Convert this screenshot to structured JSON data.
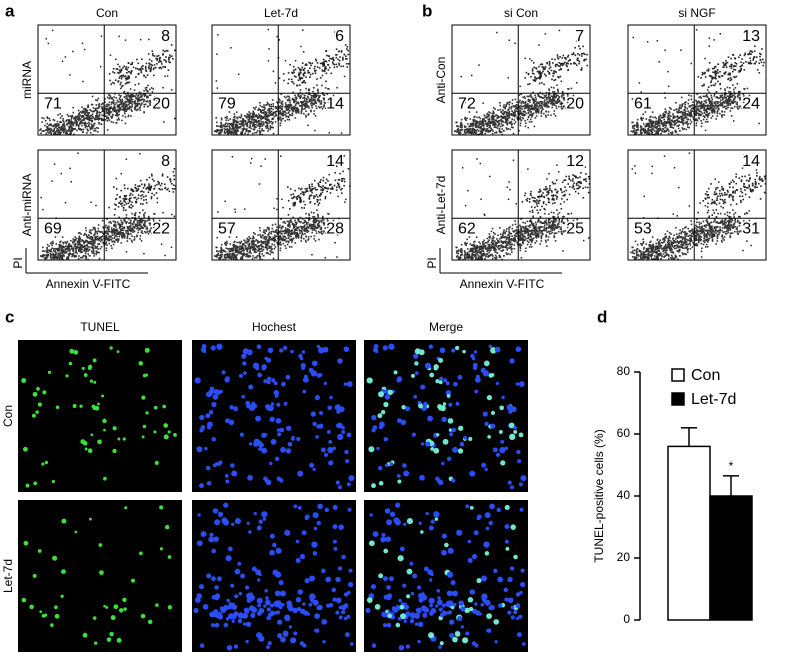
{
  "flow_panels": [
    {
      "label": "a",
      "columns": [
        "Con",
        "Let-7d"
      ],
      "rows": [
        "miRNA",
        "Anti-miRNA"
      ],
      "plots": [
        [
          {
            "ur": 8,
            "ll": 71,
            "lr": 20
          },
          {
            "ur": 6,
            "ll": 79,
            "lr": 14
          }
        ],
        [
          {
            "ur": 8,
            "ll": 69,
            "lr": 22
          },
          {
            "ur": 14,
            "ll": 57,
            "lr": 28
          }
        ]
      ],
      "y_label": "PI",
      "x_label": "Annexin V-FITC"
    },
    {
      "label": "b",
      "columns": [
        "si Con",
        "si NGF"
      ],
      "rows": [
        "Anti-Con",
        "Anti-Let-7d"
      ],
      "plots": [
        [
          {
            "ur": 7,
            "ll": 72,
            "lr": 20
          },
          {
            "ur": 13,
            "ll": 61,
            "lr": 24
          }
        ],
        [
          {
            "ur": 12,
            "ll": 62,
            "lr": 25
          },
          {
            "ur": 14,
            "ll": 53,
            "lr": 31
          }
        ]
      ],
      "y_label": "PI",
      "x_label": "Annexin V-FITC"
    }
  ],
  "image_panel": {
    "label": "c",
    "columns": [
      "TUNEL",
      "Hochest",
      "Merge"
    ],
    "rows": [
      "Con",
      "Let-7d"
    ]
  },
  "chart_data": {
    "type": "bar",
    "panel_label": "d",
    "y_label": "TUNEL-positive cells (%)",
    "categories": [
      null
    ],
    "series": [
      {
        "name": "Con",
        "color": "#ffffff",
        "values": [
          56
        ],
        "errors": [
          6
        ]
      },
      {
        "name": "Let-7d",
        "color": "#000000",
        "values": [
          40
        ],
        "errors": [
          6.5
        ]
      }
    ],
    "annotation": "*",
    "ylim": [
      0,
      80
    ],
    "yticks": [
      0,
      20,
      40,
      60,
      80
    ]
  }
}
